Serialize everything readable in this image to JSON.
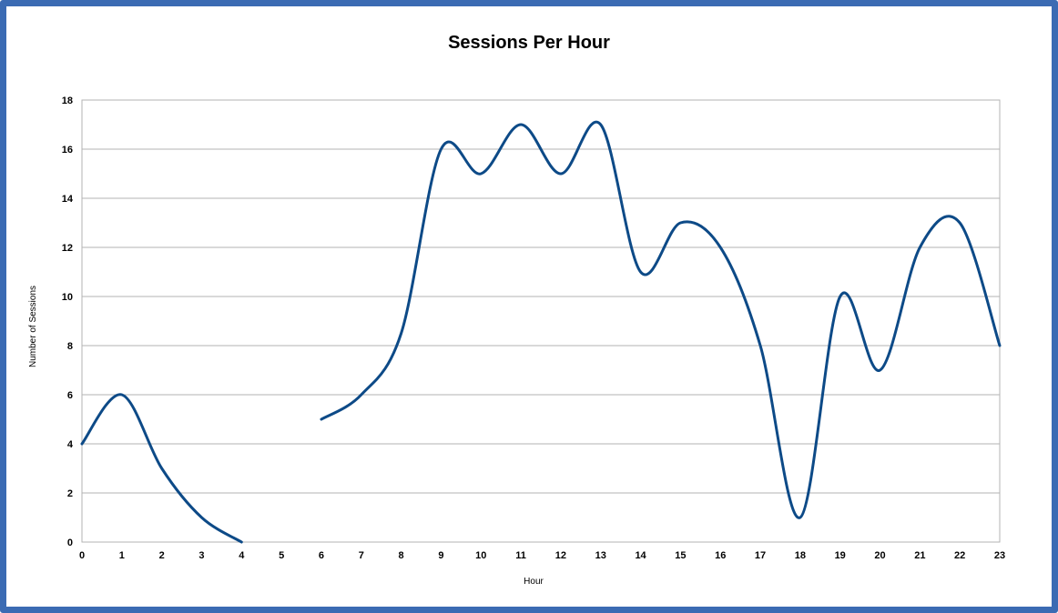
{
  "chart_data": {
    "type": "line",
    "title": "Sessions Per Hour",
    "xlabel": "Hour",
    "ylabel": "Number of Sessions",
    "x": [
      0,
      1,
      2,
      3,
      4,
      5,
      6,
      7,
      8,
      9,
      10,
      11,
      12,
      13,
      14,
      15,
      16,
      17,
      18,
      19,
      20,
      21,
      22,
      23
    ],
    "series": [
      {
        "values": [
          4,
          6,
          3,
          1,
          0,
          null,
          5,
          6,
          8.5,
          16,
          15,
          17,
          15,
          17,
          11,
          13,
          12,
          8,
          1,
          10,
          7,
          12,
          13,
          8
        ]
      }
    ],
    "ylim": [
      0,
      18
    ],
    "yticks": [
      0,
      2,
      4,
      6,
      8,
      10,
      12,
      14,
      16,
      18
    ],
    "xlim": [
      0,
      23
    ],
    "grid": "horizontal",
    "smoothed": true,
    "colors": {
      "line": "#0d4a87",
      "grid": "#b3b3b3",
      "frame": "#3b6bb3",
      "plot_border": "#b3b3b3"
    }
  }
}
